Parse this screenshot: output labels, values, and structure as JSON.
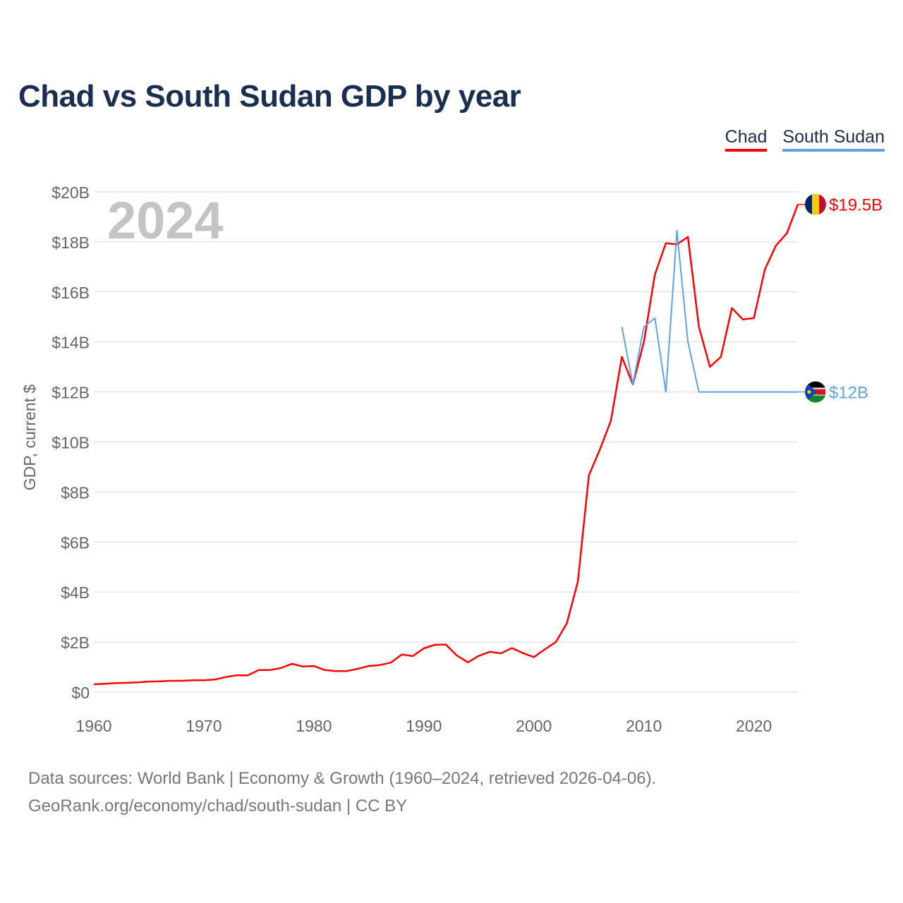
{
  "title": "Chad vs South Sudan GDP by year",
  "footer": {
    "line1": "Data sources: World Bank | Economy & Growth (1960–2024, retrieved 2026-04-06).",
    "line2": "GeoRank.org/economy/chad/south-sudan | CC BY"
  },
  "chart_data": {
    "type": "line",
    "title": "Chad vs South Sudan GDP by year",
    "xlabel": "",
    "ylabel": "GDP, current $",
    "year_watermark": "2024",
    "xlim": [
      1960,
      2024
    ],
    "ylim": [
      0,
      20
    ],
    "x_ticks": [
      "1960",
      "1970",
      "1980",
      "1990",
      "2000",
      "2010",
      "2020"
    ],
    "y_ticks": [
      "$0",
      "$2B",
      "$4B",
      "$6B",
      "$8B",
      "$10B",
      "$12B",
      "$14B",
      "$16B",
      "$18B",
      "$20B"
    ],
    "legend_position": "top-right",
    "series": [
      {
        "name": "Chad",
        "color": "#ff0000",
        "end_label": "$19.5B",
        "flag": "chad-flag-icon",
        "x_start": 1960,
        "values": [
          0.31,
          0.33,
          0.36,
          0.37,
          0.39,
          0.42,
          0.43,
          0.45,
          0.45,
          0.47,
          0.47,
          0.5,
          0.6,
          0.67,
          0.67,
          0.88,
          0.88,
          0.96,
          1.13,
          1.02,
          1.04,
          0.88,
          0.84,
          0.84,
          0.93,
          1.04,
          1.08,
          1.18,
          1.5,
          1.44,
          1.75,
          1.89,
          1.9,
          1.46,
          1.19,
          1.45,
          1.61,
          1.55,
          1.76,
          1.56,
          1.4,
          1.71,
          2.0,
          2.75,
          4.42,
          8.66,
          9.7,
          10.85,
          13.4,
          12.3,
          14.0,
          16.7,
          17.95,
          17.9,
          18.2,
          14.6,
          13.0,
          13.4,
          15.35,
          14.9,
          14.95,
          16.9,
          17.85,
          18.35,
          19.5
        ]
      },
      {
        "name": "South Sudan",
        "color": "#5ba4e8",
        "end_label": "$12B",
        "flag": "south-sudan-flag-icon",
        "x_start": 2008,
        "values": [
          14.6,
          12.3,
          14.6,
          14.95,
          12.0,
          18.45,
          14.0,
          12.0,
          12.0,
          12.0,
          12.0,
          12.0,
          12.0,
          12.0,
          12.0,
          12.0,
          12.0
        ]
      }
    ]
  }
}
